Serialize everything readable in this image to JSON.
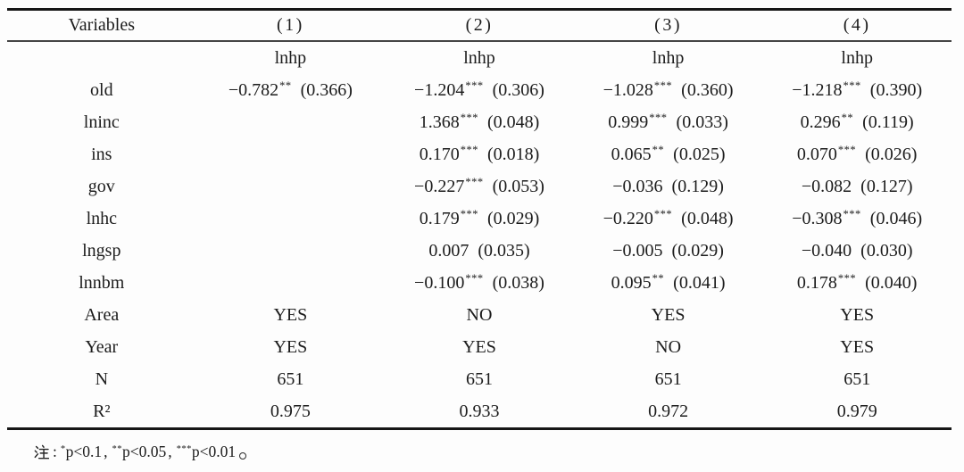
{
  "table": {
    "columns": [
      "Variables",
      "(1)",
      "(2)",
      "(3)",
      "(4)"
    ],
    "rows": [
      {
        "label": "",
        "cells": [
          "lnhp",
          "lnhp",
          "lnhp",
          "lnhp"
        ]
      },
      {
        "label": "old",
        "cells": [
          {
            "coef": "−0.782",
            "stars": "**",
            "se": "(0.366)"
          },
          {
            "coef": "−1.204",
            "stars": "***",
            "se": "(0.306)"
          },
          {
            "coef": "−1.028",
            "stars": "***",
            "se": "(0.360)"
          },
          {
            "coef": "−1.218",
            "stars": "***",
            "se": "(0.390)"
          }
        ]
      },
      {
        "label": "lninc",
        "cells": [
          null,
          {
            "coef": "1.368",
            "stars": "***",
            "se": "(0.048)"
          },
          {
            "coef": "0.999",
            "stars": "***",
            "se": "(0.033)"
          },
          {
            "coef": "0.296",
            "stars": "**",
            "se": "(0.119)"
          }
        ]
      },
      {
        "label": "ins",
        "cells": [
          null,
          {
            "coef": "0.170",
            "stars": "***",
            "se": "(0.018)"
          },
          {
            "coef": "0.065",
            "stars": "**",
            "se": "(0.025)"
          },
          {
            "coef": "0.070",
            "stars": "***",
            "se": "(0.026)"
          }
        ]
      },
      {
        "label": "gov",
        "cells": [
          null,
          {
            "coef": "−0.227",
            "stars": "***",
            "se": "(0.053)"
          },
          {
            "coef": "−0.036",
            "stars": "",
            "se": "(0.129)"
          },
          {
            "coef": "−0.082",
            "stars": "",
            "se": "(0.127)"
          }
        ]
      },
      {
        "label": "lnhc",
        "cells": [
          null,
          {
            "coef": "0.179",
            "stars": "***",
            "se": "(0.029)"
          },
          {
            "coef": "−0.220",
            "stars": "***",
            "se": "(0.048)"
          },
          {
            "coef": "−0.308",
            "stars": "***",
            "se": "(0.046)"
          }
        ]
      },
      {
        "label": "lngsp",
        "cells": [
          null,
          {
            "coef": "0.007",
            "stars": "",
            "se": "(0.035)"
          },
          {
            "coef": "−0.005",
            "stars": "",
            "se": "(0.029)"
          },
          {
            "coef": "−0.040",
            "stars": "",
            "se": "(0.030)"
          }
        ]
      },
      {
        "label": "lnnbm",
        "cells": [
          null,
          {
            "coef": "−0.100",
            "stars": "***",
            "se": "(0.038)"
          },
          {
            "coef": "0.095",
            "stars": "**",
            "se": "(0.041)"
          },
          {
            "coef": "0.178",
            "stars": "***",
            "se": "(0.040)"
          }
        ]
      },
      {
        "label": "Area",
        "cells": [
          "YES",
          "NO",
          "YES",
          "YES"
        ]
      },
      {
        "label": "Year",
        "cells": [
          "YES",
          "YES",
          "NO",
          "YES"
        ]
      },
      {
        "label": "N",
        "cells": [
          "651",
          "651",
          "651",
          "651"
        ]
      },
      {
        "label": "R²",
        "cells": [
          "0.975",
          "0.933",
          "0.972",
          "0.979"
        ]
      }
    ]
  },
  "note": {
    "glyph": "注",
    "colon": ":",
    "separator": ",",
    "segments": [
      {
        "stars": "*",
        "text": "p<0.1"
      },
      {
        "stars": "**",
        "text": "p<0.05"
      },
      {
        "stars": "***",
        "text": "p<0.01"
      }
    ],
    "period": "。"
  },
  "colors": {
    "text": "#1c1c1c",
    "rule_heavy": "#161616",
    "rule_light": "#454545",
    "background": "#fdfdfd"
  }
}
